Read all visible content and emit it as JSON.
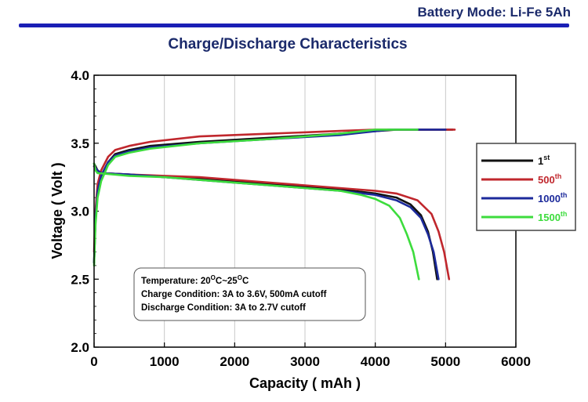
{
  "header": {
    "title": "Battery Mode: Li-Fe 5Ah"
  },
  "chart_data": {
    "type": "line",
    "title": "Charge/Discharge Characteristics",
    "xlabel": "Capacity ( mAh )",
    "ylabel": "Voltage ( Volt )",
    "xlim": [
      0,
      6000
    ],
    "ylim": [
      2.0,
      4.0
    ],
    "xticks": [
      "0",
      "1000",
      "2000",
      "3000",
      "4000",
      "5000",
      "6000"
    ],
    "yticks": [
      "2.0",
      "2.5",
      "3.0",
      "3.5",
      "4.0"
    ],
    "grid": "vertical",
    "legend_position": "right",
    "annotation": {
      "lines": [
        "Temperature: 20",
        "Charge Condition: 3A to 3.6V, 500mA cutoff",
        "Discharge Condition: 3A to 2.7V cutoff"
      ],
      "temp_low": "20",
      "temp_high": "25",
      "degree": "O",
      "unit": "C",
      "separator": "~"
    },
    "series": [
      {
        "name": "1",
        "suffix": "st",
        "color": "#111111",
        "charge": [
          [
            0,
            2.62
          ],
          [
            20,
            2.95
          ],
          [
            50,
            3.15
          ],
          [
            100,
            3.26
          ],
          [
            200,
            3.36
          ],
          [
            300,
            3.42
          ],
          [
            500,
            3.45
          ],
          [
            800,
            3.48
          ],
          [
            1500,
            3.51
          ],
          [
            2500,
            3.54
          ],
          [
            3500,
            3.57
          ],
          [
            4300,
            3.6
          ],
          [
            5100,
            3.6
          ]
        ],
        "discharge": [
          [
            0,
            3.35
          ],
          [
            50,
            3.3
          ],
          [
            100,
            3.28
          ],
          [
            500,
            3.27
          ],
          [
            1000,
            3.25
          ],
          [
            1500,
            3.24
          ],
          [
            2000,
            3.22
          ],
          [
            2500,
            3.2
          ],
          [
            3000,
            3.18
          ],
          [
            3500,
            3.16
          ],
          [
            4000,
            3.13
          ],
          [
            4300,
            3.1
          ],
          [
            4500,
            3.05
          ],
          [
            4650,
            2.97
          ],
          [
            4750,
            2.85
          ],
          [
            4820,
            2.7
          ],
          [
            4880,
            2.5
          ]
        ]
      },
      {
        "name": "500",
        "suffix": "th",
        "color": "#c0272d",
        "charge": [
          [
            0,
            2.7
          ],
          [
            20,
            3.0
          ],
          [
            50,
            3.2
          ],
          [
            100,
            3.3
          ],
          [
            200,
            3.4
          ],
          [
            300,
            3.45
          ],
          [
            500,
            3.48
          ],
          [
            800,
            3.51
          ],
          [
            1500,
            3.55
          ],
          [
            2500,
            3.57
          ],
          [
            3500,
            3.59
          ],
          [
            4000,
            3.6
          ],
          [
            5130,
            3.6
          ]
        ],
        "discharge": [
          [
            0,
            3.33
          ],
          [
            50,
            3.3
          ],
          [
            100,
            3.28
          ],
          [
            500,
            3.27
          ],
          [
            1000,
            3.26
          ],
          [
            1500,
            3.25
          ],
          [
            2000,
            3.23
          ],
          [
            2500,
            3.21
          ],
          [
            3000,
            3.19
          ],
          [
            3500,
            3.17
          ],
          [
            4000,
            3.15
          ],
          [
            4300,
            3.13
          ],
          [
            4600,
            3.08
          ],
          [
            4800,
            2.98
          ],
          [
            4900,
            2.85
          ],
          [
            4980,
            2.7
          ],
          [
            5050,
            2.5
          ]
        ]
      },
      {
        "name": "1000",
        "suffix": "th",
        "color": "#1c2a9b",
        "charge": [
          [
            0,
            2.62
          ],
          [
            20,
            2.95
          ],
          [
            50,
            3.15
          ],
          [
            100,
            3.26
          ],
          [
            200,
            3.36
          ],
          [
            300,
            3.41
          ],
          [
            500,
            3.44
          ],
          [
            800,
            3.47
          ],
          [
            1500,
            3.5
          ],
          [
            2500,
            3.53
          ],
          [
            3500,
            3.56
          ],
          [
            4200,
            3.6
          ],
          [
            5000,
            3.6
          ]
        ],
        "discharge": [
          [
            0,
            3.33
          ],
          [
            50,
            3.3
          ],
          [
            100,
            3.28
          ],
          [
            500,
            3.27
          ],
          [
            1000,
            3.25
          ],
          [
            1500,
            3.23
          ],
          [
            2000,
            3.21
          ],
          [
            2500,
            3.19
          ],
          [
            3000,
            3.17
          ],
          [
            3500,
            3.15
          ],
          [
            4000,
            3.12
          ],
          [
            4300,
            3.08
          ],
          [
            4500,
            3.03
          ],
          [
            4650,
            2.95
          ],
          [
            4750,
            2.83
          ],
          [
            4830,
            2.7
          ],
          [
            4900,
            2.5
          ]
        ]
      },
      {
        "name": "1500",
        "suffix": "th",
        "color": "#3ddc3d",
        "charge": [
          [
            0,
            2.6
          ],
          [
            20,
            2.9
          ],
          [
            50,
            3.1
          ],
          [
            100,
            3.22
          ],
          [
            200,
            3.34
          ],
          [
            300,
            3.4
          ],
          [
            500,
            3.43
          ],
          [
            800,
            3.46
          ],
          [
            1500,
            3.5
          ],
          [
            2500,
            3.53
          ],
          [
            3500,
            3.57
          ],
          [
            4000,
            3.6
          ],
          [
            4600,
            3.6
          ]
        ],
        "discharge": [
          [
            0,
            3.35
          ],
          [
            20,
            3.3
          ],
          [
            50,
            3.28
          ],
          [
            500,
            3.26
          ],
          [
            1000,
            3.25
          ],
          [
            1500,
            3.23
          ],
          [
            2000,
            3.21
          ],
          [
            2500,
            3.19
          ],
          [
            3000,
            3.17
          ],
          [
            3500,
            3.15
          ],
          [
            3800,
            3.12
          ],
          [
            4000,
            3.09
          ],
          [
            4200,
            3.04
          ],
          [
            4350,
            2.95
          ],
          [
            4450,
            2.83
          ],
          [
            4540,
            2.7
          ],
          [
            4620,
            2.5
          ]
        ]
      }
    ]
  }
}
